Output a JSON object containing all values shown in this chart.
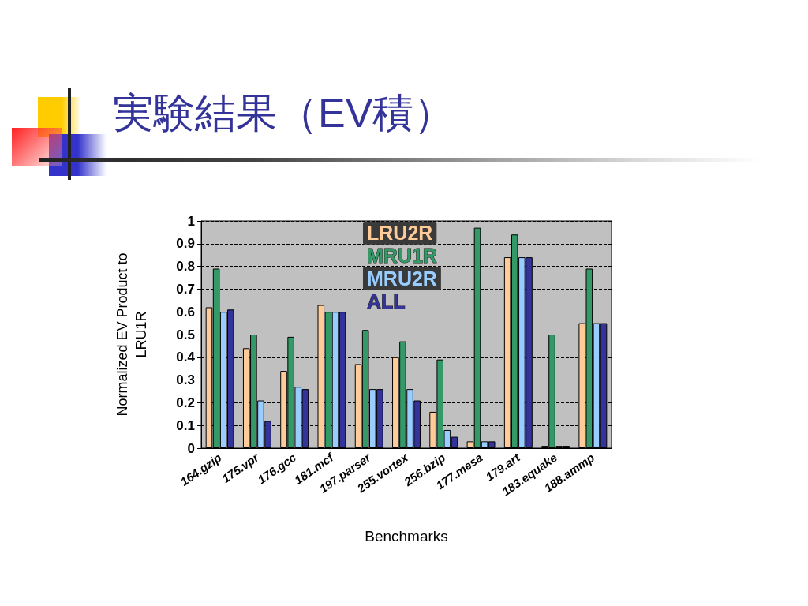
{
  "chart_data": {
    "type": "bar",
    "title": "実験結果（EV積）",
    "xlabel": "Benchmarks",
    "ylabel": "Normalized EV Product to LRU1R",
    "categories": [
      "164.gzip",
      "175.vpr",
      "176.gcc",
      "181.mcf",
      "197.parser",
      "255.vortex",
      "256.bzip",
      "177.mesa",
      "179.art",
      "183.equake",
      "188.ammp"
    ],
    "series": [
      {
        "name": "LRU2R",
        "color": "#ffcc99",
        "values": [
          0.62,
          0.44,
          0.34,
          0.63,
          0.37,
          0.4,
          0.16,
          0.03,
          0.84,
          0.01,
          0.55
        ]
      },
      {
        "name": "MRU1R",
        "color": "#339966",
        "values": [
          0.79,
          0.5,
          0.49,
          0.6,
          0.52,
          0.47,
          0.39,
          0.97,
          0.94,
          0.5,
          0.79
        ]
      },
      {
        "name": "MRU2R",
        "color": "#99ccff",
        "values": [
          0.6,
          0.21,
          0.27,
          0.6,
          0.26,
          0.26,
          0.08,
          0.03,
          0.84,
          0.01,
          0.55
        ]
      },
      {
        "name": "ALL",
        "color": "#333399",
        "values": [
          0.61,
          0.12,
          0.26,
          0.6,
          0.26,
          0.21,
          0.05,
          0.03,
          0.84,
          0.01,
          0.55
        ]
      }
    ],
    "ylim": [
      0,
      1
    ],
    "yticks": [
      0,
      0.1,
      0.2,
      0.3,
      0.4,
      0.5,
      0.6,
      0.7,
      0.8,
      0.9,
      1
    ],
    "grid": "y",
    "legend": "top"
  }
}
